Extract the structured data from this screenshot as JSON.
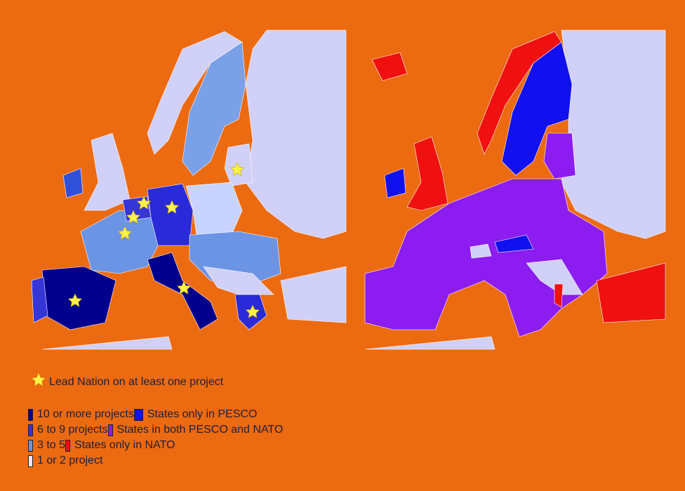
{
  "legend": {
    "lead_nation": "Lead Nation on at least one project",
    "rows": [
      [
        {
          "label": "10 or more projects",
          "color": "#00008c"
        },
        {
          "label": "States only in PESCO",
          "color": "#1010f0"
        }
      ],
      [
        {
          "label": "6 to 9 projects",
          "color": "#3535d8"
        },
        {
          "label": "States in both PESCO and NATO",
          "color": "#8c1cf0"
        }
      ],
      [
        {
          "label": "3 to 5",
          "color": "#6c94e4"
        },
        {
          "label": "States only in NATO",
          "color": "#f01010"
        }
      ],
      [
        {
          "label": "1 or 2 project",
          "color": "#e8e8ff"
        }
      ]
    ]
  }
}
